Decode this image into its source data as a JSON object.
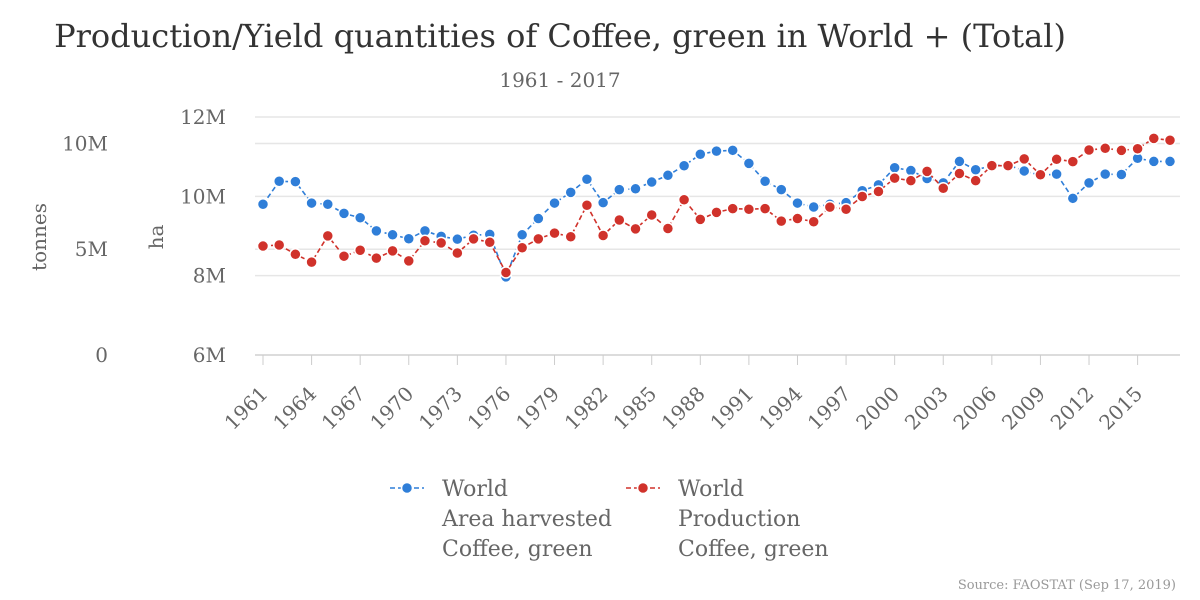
{
  "chart_data": {
    "type": "line",
    "title": "Production/Yield quantities of Coffee, green in World + (Total)",
    "subtitle": "1961 - 2017",
    "credits": "Source: FAOSTAT (Sep 17, 2019)",
    "x": [
      1961,
      1962,
      1963,
      1964,
      1965,
      1966,
      1967,
      1968,
      1969,
      1970,
      1971,
      1972,
      1973,
      1974,
      1975,
      1976,
      1977,
      1978,
      1979,
      1980,
      1981,
      1982,
      1983,
      1984,
      1985,
      1986,
      1987,
      1988,
      1989,
      1990,
      1991,
      1992,
      1993,
      1994,
      1995,
      1996,
      1997,
      1998,
      1999,
      2000,
      2001,
      2002,
      2003,
      2004,
      2005,
      2006,
      2007,
      2008,
      2009,
      2010,
      2011,
      2012,
      2013,
      2014,
      2015,
      2016,
      2017
    ],
    "x_tick_labels": [
      "1961",
      "1964",
      "1967",
      "1970",
      "1973",
      "1976",
      "1979",
      "1982",
      "1985",
      "1988",
      "1991",
      "1994",
      "1997",
      "2000",
      "2003",
      "2006",
      "2009",
      "2012",
      "2015"
    ],
    "y_axes": [
      {
        "id": "area",
        "title": "ha",
        "ylim": [
          6000000,
          12000000
        ],
        "ticks": [
          6000000,
          8000000,
          10000000,
          12000000
        ],
        "tick_labels": [
          "6M",
          "8M",
          "10M",
          "12M"
        ]
      },
      {
        "id": "production",
        "title": "tonnes",
        "ylim": [
          0,
          11250000
        ],
        "ticks": [
          0,
          5000000,
          10000000
        ],
        "tick_labels": [
          "0",
          "5M",
          "10M"
        ]
      }
    ],
    "grid": true,
    "legend_position": "bottom",
    "series": [
      {
        "name": "World Area harvested Coffee, green",
        "legend_lines": [
          "World",
          "Area harvested",
          "Coffee, green"
        ],
        "axis": "area",
        "color": "#2f7ed8",
        "values": [
          9800000,
          10380000,
          10370000,
          9830000,
          9800000,
          9570000,
          9460000,
          9130000,
          9030000,
          8930000,
          9130000,
          8990000,
          8920000,
          9020000,
          9040000,
          7970000,
          9030000,
          9440000,
          9830000,
          10100000,
          10430000,
          9840000,
          10170000,
          10190000,
          10360000,
          10530000,
          10770000,
          11060000,
          11140000,
          11160000,
          10830000,
          10380000,
          10170000,
          9830000,
          9730000,
          9800000,
          9840000,
          10140000,
          10290000,
          10720000,
          10650000,
          10450000,
          10340000,
          10880000,
          10670000,
          10770000,
          10790000,
          10640000,
          10530000,
          10560000,
          9950000,
          10340000,
          10560000,
          10550000,
          10960000,
          10880000,
          10880000
        ]
      },
      {
        "name": "World Production Coffee, green",
        "legend_lines": [
          "World",
          "Production",
          "Coffee, green"
        ],
        "axis": "production",
        "color": "#d0322b",
        "values": [
          5150000,
          5200000,
          4760000,
          4390000,
          5630000,
          4670000,
          4950000,
          4580000,
          4920000,
          4450000,
          5400000,
          5300000,
          4820000,
          5490000,
          5330000,
          3900000,
          5070000,
          5490000,
          5760000,
          5590000,
          7080000,
          5650000,
          6380000,
          5960000,
          6620000,
          5980000,
          7340000,
          6410000,
          6740000,
          6920000,
          6890000,
          6920000,
          6330000,
          6450000,
          6300000,
          6990000,
          6890000,
          7490000,
          7730000,
          8360000,
          8240000,
          8680000,
          7880000,
          8580000,
          8240000,
          8950000,
          8950000,
          9270000,
          8520000,
          9250000,
          9140000,
          9690000,
          9770000,
          9670000,
          9750000,
          10240000,
          10150000
        ]
      }
    ]
  }
}
